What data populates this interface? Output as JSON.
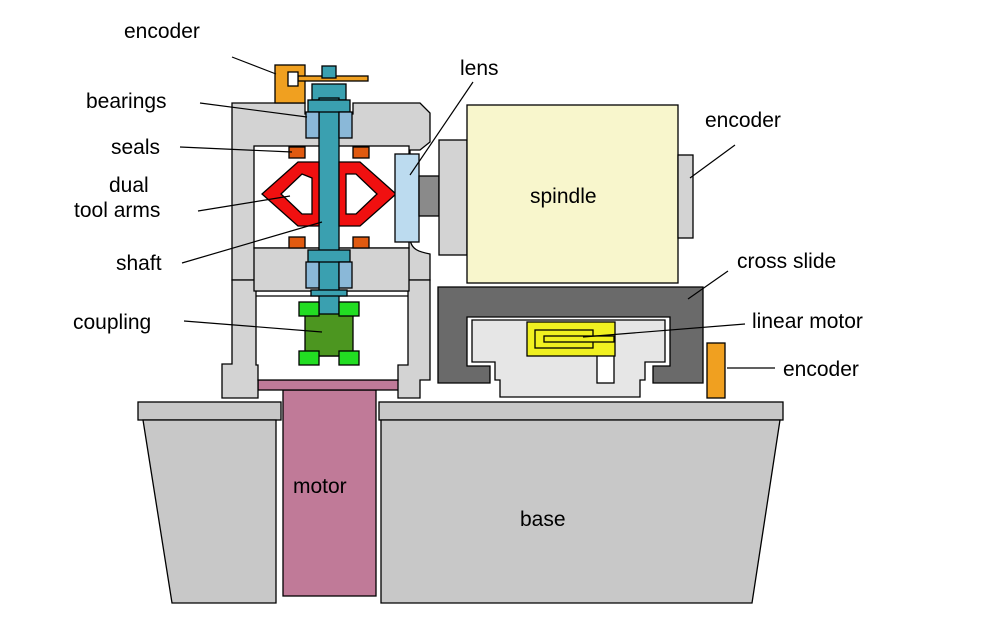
{
  "labels": {
    "encoder_top": "encoder",
    "bearings": "bearings",
    "seals": "seals",
    "dual_line1": "dual",
    "dual_line2": "tool arms",
    "shaft": "shaft",
    "coupling": "coupling",
    "motor": "motor",
    "lens": "lens",
    "spindle": "spindle",
    "encoder_right": "encoder",
    "cross_slide": "cross slide",
    "linear_motor": "linear motor",
    "encoder_bottom": "encoder",
    "base": "base"
  },
  "colors": {
    "housing": "#d3d3d3",
    "base": "#c8c8c8",
    "motor": "#c07a98",
    "shaft": "#3aa0b0",
    "bearing": "#8ab8d8",
    "seal": "#e05a10",
    "tool_arm": "#f01010",
    "coupling_green": "#4c9620",
    "coupling_light": "#22dd22",
    "encoder": "#f0a020",
    "spindle": "#f8f6cc",
    "lens": "#bcdbef",
    "cross_slide": "#6a6a6a",
    "linear_motor": "#f0f020"
  }
}
